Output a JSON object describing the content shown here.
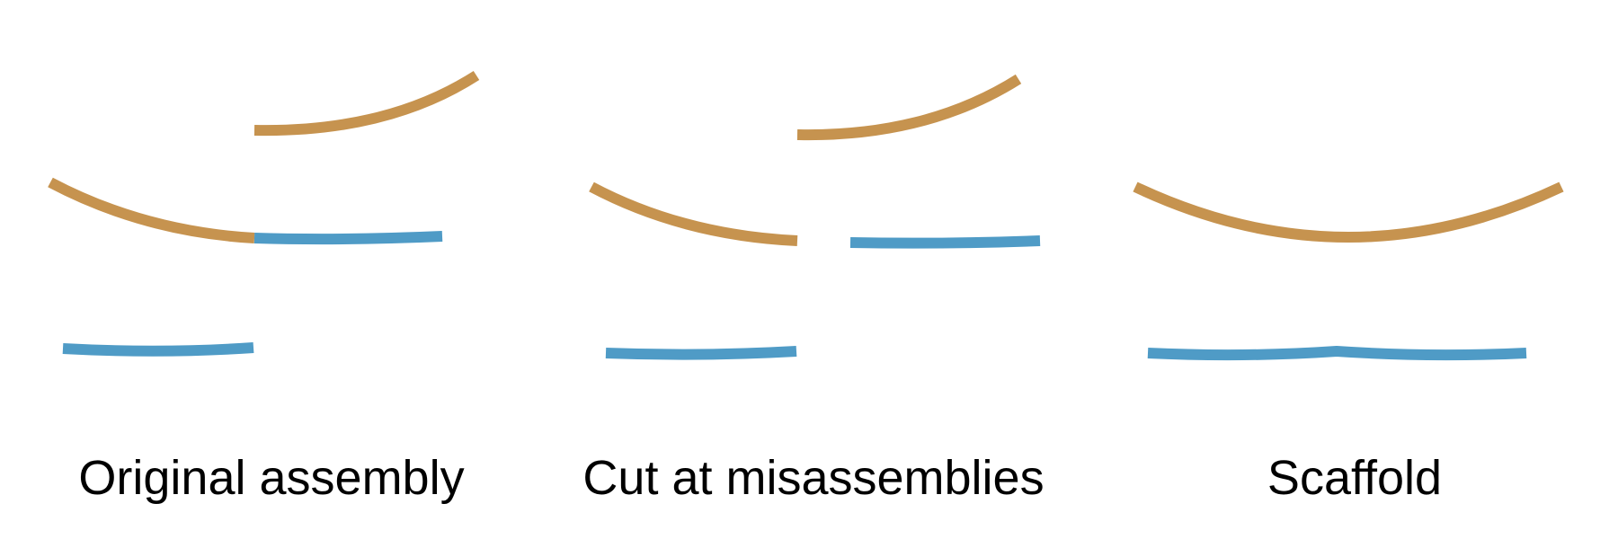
{
  "colors": {
    "tan": "#C6934F",
    "blue": "#4F9BC6"
  },
  "panels": [
    {
      "label": "Original assembly"
    },
    {
      "label": "Cut at misassemblies"
    },
    {
      "label": "Scaffold"
    }
  ]
}
